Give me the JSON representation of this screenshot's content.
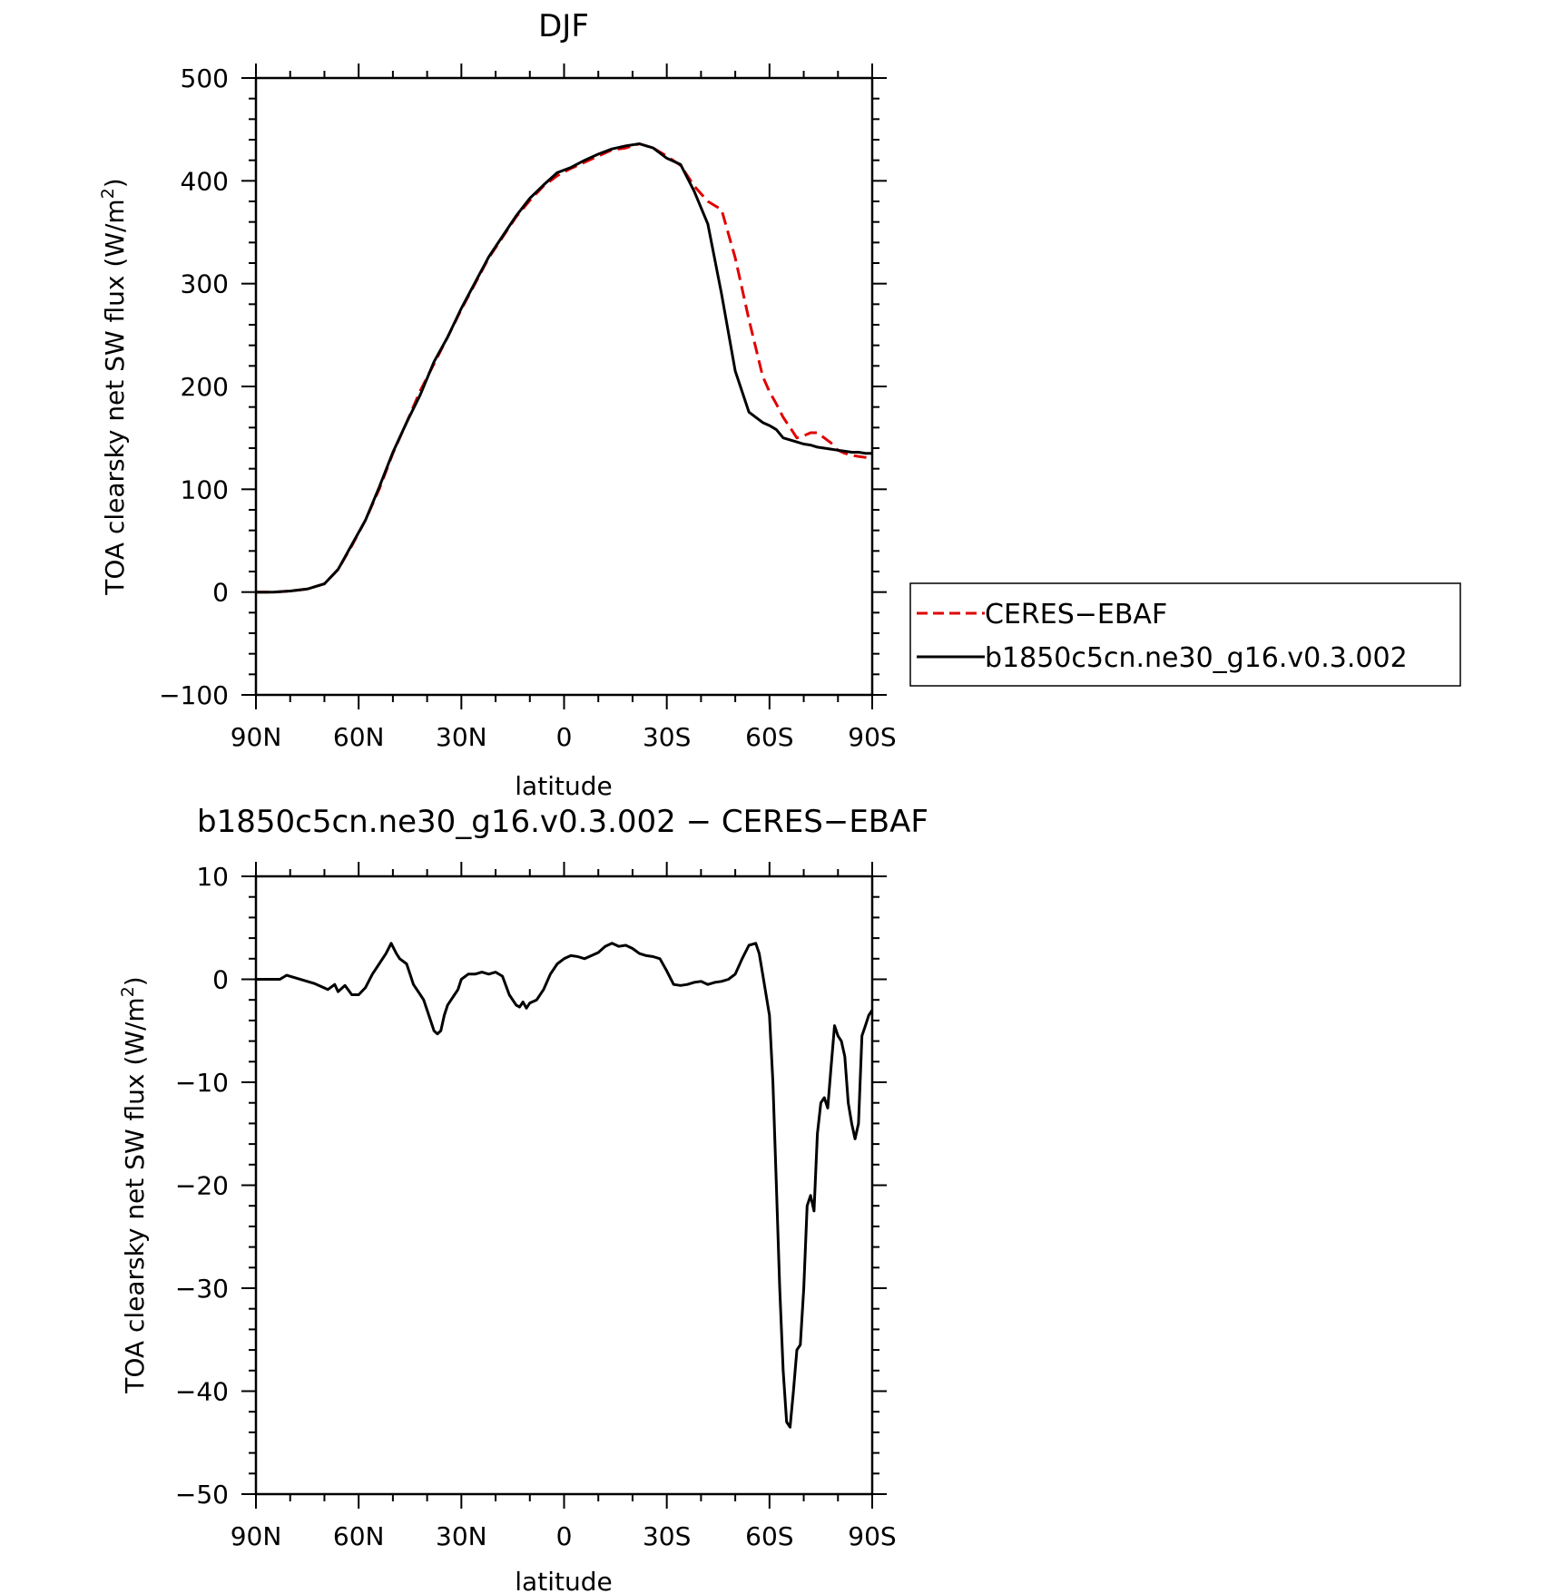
{
  "chart_data": [
    {
      "type": "line",
      "title": "DJF",
      "xlabel": "latitude",
      "ylabel": "TOA clearsky net SW flux (W/m²)",
      "ylabel_parts": [
        "TOA clearsky net SW flux (W/m",
        "2",
        ")"
      ],
      "xlim": [
        90,
        -90
      ],
      "ylim": [
        -100,
        500
      ],
      "x_ticks": [
        90,
        60,
        30,
        0,
        -30,
        -60,
        -90
      ],
      "x_tick_labels": [
        "90N",
        "60N",
        "30N",
        "0",
        "30S",
        "60S",
        "90S"
      ],
      "y_ticks": [
        -100,
        0,
        100,
        200,
        300,
        400,
        500
      ],
      "y_tick_labels": [
        "−100",
        "0",
        "100",
        "200",
        "300",
        "400",
        "500"
      ],
      "grid": false,
      "legend": "right",
      "series": [
        {
          "name": "CERES−EBAF",
          "color": "#e00000",
          "dash": "dashed",
          "x": [
            90,
            85,
            80,
            75,
            70,
            66,
            62,
            58,
            54,
            50,
            46,
            42,
            38,
            34,
            30,
            26,
            22,
            18,
            14,
            10,
            6,
            2,
            -2,
            -6,
            -10,
            -14,
            -18,
            -22,
            -26,
            -30,
            -34,
            -38,
            -42,
            -46,
            -50,
            -54,
            -58,
            -60,
            -62,
            -64,
            -66,
            -68,
            -70,
            -72,
            -74,
            -76,
            -78,
            -80,
            -82,
            -84,
            -86,
            -88,
            -90
          ],
          "y": [
            0,
            0,
            1,
            3,
            8,
            22,
            45,
            70,
            100,
            135,
            165,
            196,
            222,
            248,
            275,
            300,
            325,
            345,
            365,
            381,
            395,
            405,
            412,
            418,
            424,
            430,
            432,
            436,
            432,
            424,
            415,
            395,
            380,
            372,
            325,
            265,
            210,
            195,
            183,
            170,
            160,
            150,
            152,
            155,
            155,
            150,
            145,
            138,
            135,
            133,
            132,
            131,
            130
          ]
        },
        {
          "name": "b1850c5cn.ne30_g16.v0.3.002",
          "color": "#000000",
          "dash": "solid",
          "x": [
            90,
            85,
            80,
            75,
            70,
            66,
            62,
            58,
            54,
            50,
            46,
            42,
            38,
            34,
            30,
            26,
            22,
            18,
            14,
            10,
            6,
            2,
            -2,
            -6,
            -10,
            -14,
            -18,
            -22,
            -26,
            -30,
            -34,
            -38,
            -42,
            -46,
            -50,
            -54,
            -58,
            -60,
            -62,
            -64,
            -66,
            -68,
            -70,
            -72,
            -74,
            -76,
            -78,
            -80,
            -82,
            -84,
            -86,
            -88,
            -90
          ],
          "y": [
            0,
            0,
            1,
            3,
            8,
            22,
            46,
            70,
            102,
            136,
            165,
            192,
            224,
            248,
            276,
            301,
            326,
            346,
            366,
            383,
            396,
            408,
            413,
            420,
            426,
            431,
            434,
            436,
            432,
            422,
            416,
            390,
            358,
            290,
            215,
            175,
            165,
            162,
            158,
            150,
            148,
            146,
            144,
            143,
            141,
            140,
            139,
            138,
            137,
            136,
            136,
            135,
            135
          ]
        }
      ]
    },
    {
      "type": "line",
      "title": "b1850c5cn.ne30_g16.v0.3.002 − CERES−EBAF",
      "xlabel": "latitude",
      "ylabel": "TOA clearsky net SW flux (W/m²)",
      "ylabel_parts": [
        "TOA clearsky net SW flux (W/m",
        "2",
        ")"
      ],
      "xlim": [
        90,
        -90
      ],
      "ylim": [
        -50,
        10
      ],
      "x_ticks": [
        90,
        60,
        30,
        0,
        -30,
        -60,
        -90
      ],
      "x_tick_labels": [
        "90N",
        "60N",
        "30N",
        "0",
        "30S",
        "60S",
        "90S"
      ],
      "y_ticks": [
        -50,
        -40,
        -30,
        -20,
        -10,
        0,
        10
      ],
      "y_tick_labels": [
        "−50",
        "−40",
        "−30",
        "−20",
        "−10",
        "0",
        "10"
      ],
      "grid": false,
      "series": [
        {
          "color": "#000000",
          "dash": "solid",
          "x": [
            90,
            83,
            81,
            73,
            71,
            69,
            67,
            66,
            64,
            62,
            60,
            58,
            56,
            54,
            52,
            50.5,
            49,
            48,
            46,
            45,
            44,
            42,
            41,
            40,
            39,
            38,
            37,
            36,
            35,
            34,
            33,
            32,
            31,
            30,
            28,
            26,
            24,
            22,
            20,
            18,
            16,
            14,
            13,
            12,
            11,
            10,
            8,
            6,
            4,
            2,
            0,
            -2,
            -4,
            -6,
            -8,
            -10,
            -12,
            -14,
            -16,
            -18,
            -20,
            -22,
            -24,
            -26,
            -28,
            -30,
            -32,
            -34,
            -36,
            -38,
            -40,
            -42,
            -44,
            -46,
            -48,
            -50,
            -52,
            -54,
            -56,
            -57,
            -58,
            -60,
            -61,
            -62,
            -63,
            -64,
            -65,
            -66,
            -67,
            -68,
            -69,
            -70,
            -71,
            -72,
            -73,
            -74,
            -75,
            -76,
            -77,
            -78,
            -79,
            -80,
            -81,
            -82,
            -83,
            -84,
            -85,
            -86,
            -87,
            -88,
            -89,
            -90
          ],
          "y": [
            0,
            0,
            0.4,
            -0.4,
            -0.7,
            -1.0,
            -0.5,
            -1.2,
            -0.6,
            -1.5,
            -1.5,
            -0.8,
            0.5,
            1.5,
            2.5,
            3.5,
            2.5,
            2.0,
            1.5,
            0.5,
            -0.5,
            -1.5,
            -2.0,
            -3.0,
            -4.0,
            -5.0,
            -5.3,
            -5.0,
            -3.5,
            -2.5,
            -2.0,
            -1.5,
            -1.0,
            0.0,
            0.5,
            0.5,
            0.7,
            0.5,
            0.7,
            0.3,
            -1.5,
            -2.5,
            -2.7,
            -2.2,
            -2.8,
            -2.3,
            -2.0,
            -1.0,
            0.5,
            1.5,
            2.0,
            2.3,
            2.2,
            2.0,
            2.3,
            2.6,
            3.2,
            3.5,
            3.2,
            3.3,
            3.0,
            2.5,
            2.3,
            2.2,
            2.0,
            0.8,
            -0.5,
            -0.6,
            -0.5,
            -0.3,
            -0.2,
            -0.5,
            -0.3,
            -0.2,
            0.0,
            0.5,
            2.0,
            3.3,
            3.5,
            2.5,
            0.5,
            -3.5,
            -10.0,
            -20.0,
            -30.0,
            -38.0,
            -43.0,
            -43.5,
            -40.0,
            -36.0,
            -35.5,
            -30.0,
            -22.0,
            -21.0,
            -22.5,
            -15.0,
            -12.0,
            -11.5,
            -12.5,
            -8.5,
            -4.5,
            -5.5,
            -6.0,
            -7.5,
            -12.0,
            -14.0,
            -15.5,
            -14.0,
            -5.5,
            -4.5,
            -3.5,
            -3.0
          ]
        }
      ]
    }
  ]
}
